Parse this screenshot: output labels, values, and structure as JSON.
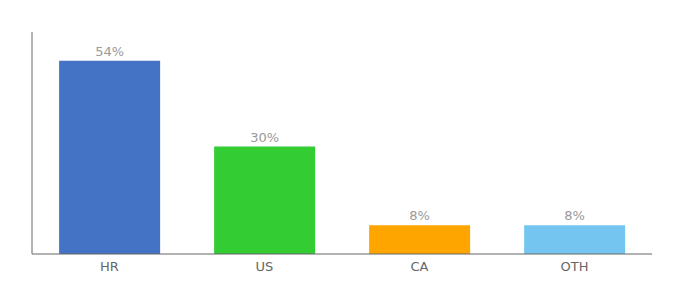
{
  "chart_data": {
    "type": "bar",
    "categories": [
      "HR",
      "US",
      "CA",
      "OTH"
    ],
    "values": [
      54,
      30,
      8,
      8
    ],
    "value_labels": [
      "54%",
      "30%",
      "8%",
      "8%"
    ],
    "data_labels": true,
    "colors": [
      "#4472C4",
      "#33CC33",
      "#FFA500",
      "#74C6F0"
    ],
    "ylim": [
      0,
      62
    ],
    "tick_labels": "x"
  }
}
